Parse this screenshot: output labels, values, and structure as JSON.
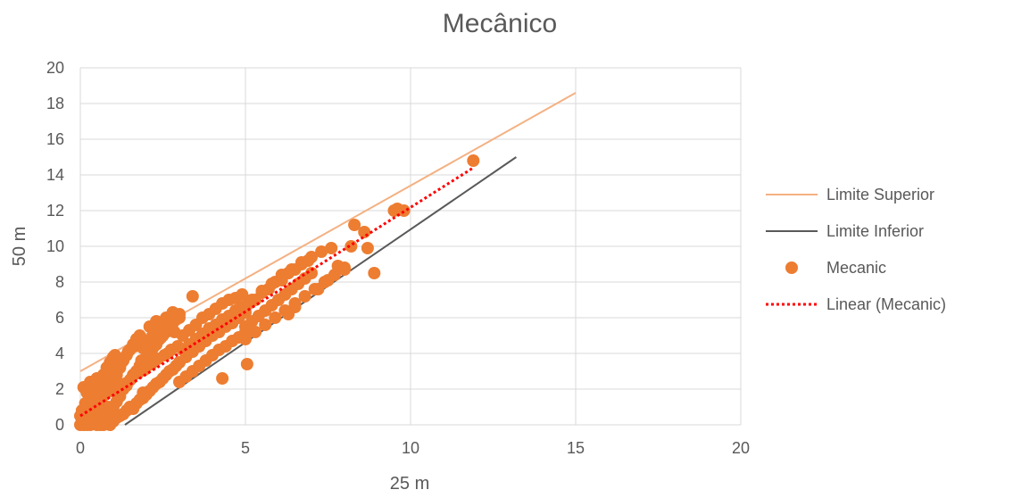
{
  "chart_data": {
    "type": "scatter",
    "title": "Mecânico",
    "xlabel": "25 m",
    "ylabel": "50 m",
    "xlim": [
      0,
      20
    ],
    "ylim": [
      0,
      20
    ],
    "xticks": [
      0,
      5,
      10,
      15,
      20
    ],
    "yticks": [
      0,
      2,
      4,
      6,
      8,
      10,
      12,
      14,
      16,
      18,
      20
    ],
    "grid": true,
    "legend_position": "right",
    "series": [
      {
        "name": "Limite Superior",
        "kind": "line",
        "color": "#f4b183",
        "x": [
          0,
          15
        ],
        "y": [
          3.0,
          18.6
        ]
      },
      {
        "name": "Limite Inferior",
        "kind": "line",
        "color": "#595959",
        "x": [
          1.35,
          13.2
        ],
        "y": [
          0,
          15.0
        ]
      },
      {
        "name": "Mecanic",
        "kind": "scatter",
        "color": "#ed7d31",
        "x": [
          0.0,
          0.05,
          0.1,
          0.15,
          0.2,
          0.25,
          0.3,
          0.35,
          0.4,
          0.45,
          0.5,
          0.55,
          0.6,
          0.65,
          0.7,
          0.75,
          0.8,
          0.85,
          0.9,
          0.95,
          1.0,
          0.0,
          0.1,
          0.2,
          0.3,
          0.4,
          0.5,
          0.6,
          0.7,
          0.8,
          0.9,
          1.0,
          0.05,
          0.15,
          0.25,
          0.35,
          0.45,
          0.55,
          0.65,
          0.75,
          0.85,
          0.95,
          0.1,
          0.2,
          0.3,
          0.4,
          0.5,
          0.6,
          0.7,
          0.8,
          0.9,
          1.0,
          0.3,
          0.5,
          0.7,
          0.9,
          1.0,
          1.1,
          1.2,
          1.3,
          1.4,
          1.5,
          1.6,
          1.7,
          1.8,
          1.9,
          2.0,
          2.1,
          2.2,
          2.3,
          2.4,
          2.5,
          2.6,
          2.7,
          2.8,
          2.9,
          3.0,
          1.0,
          1.1,
          1.2,
          1.3,
          1.4,
          1.5,
          1.6,
          1.7,
          1.8,
          1.9,
          2.0,
          2.1,
          2.2,
          2.3,
          2.4,
          2.5,
          2.6,
          2.7,
          2.8,
          2.9,
          3.0,
          1.0,
          1.1,
          1.2,
          1.3,
          1.4,
          1.5,
          1.6,
          1.7,
          1.8,
          1.9,
          2.0,
          2.1,
          2.2,
          2.3,
          2.4,
          2.5,
          2.6,
          2.7,
          2.8,
          2.9,
          3.0,
          1.05,
          1.25,
          1.45,
          1.65,
          1.85,
          2.05,
          2.25,
          2.45,
          2.65,
          2.85,
          1.15,
          1.35,
          1.55,
          1.75,
          1.95,
          2.15,
          2.35,
          2.55,
          2.75,
          2.95,
          3.0,
          3.2,
          3.4,
          3.6,
          3.8,
          4.0,
          4.2,
          4.4,
          4.6,
          4.8,
          5.0,
          3.1,
          3.3,
          3.5,
          3.7,
          3.9,
          4.1,
          4.3,
          4.5,
          4.7,
          4.9,
          3.0,
          3.2,
          3.4,
          3.6,
          3.8,
          4.0,
          4.2,
          4.4,
          4.6,
          4.8,
          5.0,
          3.1,
          3.3,
          3.5,
          3.7,
          3.9,
          4.1,
          4.3,
          4.5,
          4.7,
          4.9,
          5.0,
          5.2,
          5.4,
          5.6,
          5.8,
          6.0,
          6.2,
          6.4,
          6.6,
          6.8,
          7.0,
          5.1,
          5.3,
          5.5,
          5.7,
          5.9,
          6.1,
          6.3,
          6.5,
          6.7,
          6.9,
          5.0,
          5.3,
          5.6,
          5.9,
          6.2,
          6.5,
          6.8,
          7.1,
          7.4,
          7.7,
          8.0,
          5.2,
          5.5,
          5.8,
          6.1,
          6.4,
          6.7,
          7.0,
          7.3,
          7.6,
          7.2,
          7.5,
          7.8,
          8.0,
          8.2,
          8.3,
          8.6,
          8.7,
          8.9,
          9.5,
          9.6,
          9.8,
          11.9,
          4.3,
          5.05,
          6.5,
          6.3,
          3.4,
          1.9,
          0.6,
          0.2
        ],
        "y": [
          0.5,
          0.8,
          0.6,
          1.2,
          0.3,
          0.9,
          1.5,
          0.7,
          2.0,
          1.1,
          1.6,
          0.4,
          1.3,
          2.2,
          0.8,
          1.8,
          2.5,
          1.0,
          3.0,
          1.9,
          2.4,
          0.0,
          0.0,
          0.1,
          0.0,
          0.2,
          0.1,
          0.3,
          0.0,
          0.5,
          0.2,
          0.6,
          0.3,
          0.4,
          0.6,
          0.9,
          1.0,
          1.2,
          1.5,
          1.7,
          2.0,
          2.3,
          2.1,
          1.8,
          2.4,
          1.5,
          2.6,
          2.0,
          2.8,
          3.2,
          3.5,
          3.8,
          0.2,
          0.0,
          0.1,
          0.0,
          1.0,
          1.3,
          1.6,
          2.0,
          2.2,
          2.5,
          2.8,
          3.0,
          3.3,
          3.5,
          3.8,
          4.0,
          4.3,
          4.5,
          4.8,
          5.0,
          5.2,
          5.5,
          5.7,
          5.9,
          6.2,
          2.5,
          2.8,
          3.2,
          3.6,
          3.9,
          4.2,
          4.5,
          4.8,
          5.0,
          4.3,
          4.7,
          5.5,
          5.0,
          5.8,
          5.2,
          5.6,
          6.0,
          5.4,
          6.3,
          5.9,
          6.0,
          0.2,
          0.4,
          0.5,
          0.6,
          0.8,
          1.0,
          0.9,
          1.2,
          1.4,
          1.5,
          1.7,
          1.9,
          2.1,
          2.3,
          2.4,
          2.6,
          2.8,
          3.0,
          3.1,
          3.3,
          3.5,
          3.9,
          3.5,
          4.1,
          4.4,
          3.6,
          4.0,
          4.6,
          4.9,
          4.0,
          5.2,
          2.0,
          2.3,
          2.6,
          2.9,
          3.1,
          3.4,
          3.7,
          3.9,
          4.2,
          4.4,
          3.5,
          3.8,
          4.1,
          4.4,
          4.7,
          5.0,
          5.2,
          5.5,
          5.7,
          6.0,
          6.3,
          5.0,
          5.3,
          5.6,
          6.0,
          6.2,
          6.5,
          6.8,
          7.0,
          7.1,
          7.3,
          2.4,
          2.7,
          3.0,
          3.3,
          3.6,
          3.9,
          4.2,
          4.4,
          4.7,
          4.9,
          5.2,
          4.2,
          4.5,
          4.8,
          5.1,
          5.4,
          5.6,
          5.9,
          6.1,
          6.4,
          6.6,
          5.5,
          5.8,
          6.1,
          6.4,
          6.7,
          7.0,
          7.3,
          7.6,
          7.9,
          8.2,
          8.5,
          6.8,
          7.0,
          7.4,
          7.6,
          8.0,
          8.1,
          8.5,
          8.7,
          9.0,
          9.2,
          4.8,
          5.2,
          5.6,
          6.0,
          6.4,
          6.8,
          7.2,
          7.6,
          8.0,
          8.4,
          8.8,
          7.0,
          7.5,
          7.9,
          8.4,
          8.7,
          9.1,
          9.4,
          9.7,
          9.9,
          7.6,
          8.1,
          8.9,
          8.7,
          10.0,
          11.2,
          10.8,
          9.9,
          8.5,
          12.0,
          12.1,
          12.0,
          14.8,
          2.6,
          3.4,
          6.6,
          6.2,
          7.2,
          1.8,
          0.0,
          0.0
        ]
      },
      {
        "name": "Linear (Mecanic)",
        "kind": "trendline",
        "color": "#ff0000",
        "x": [
          0,
          11.9
        ],
        "y": [
          0.5,
          14.4
        ]
      }
    ]
  }
}
